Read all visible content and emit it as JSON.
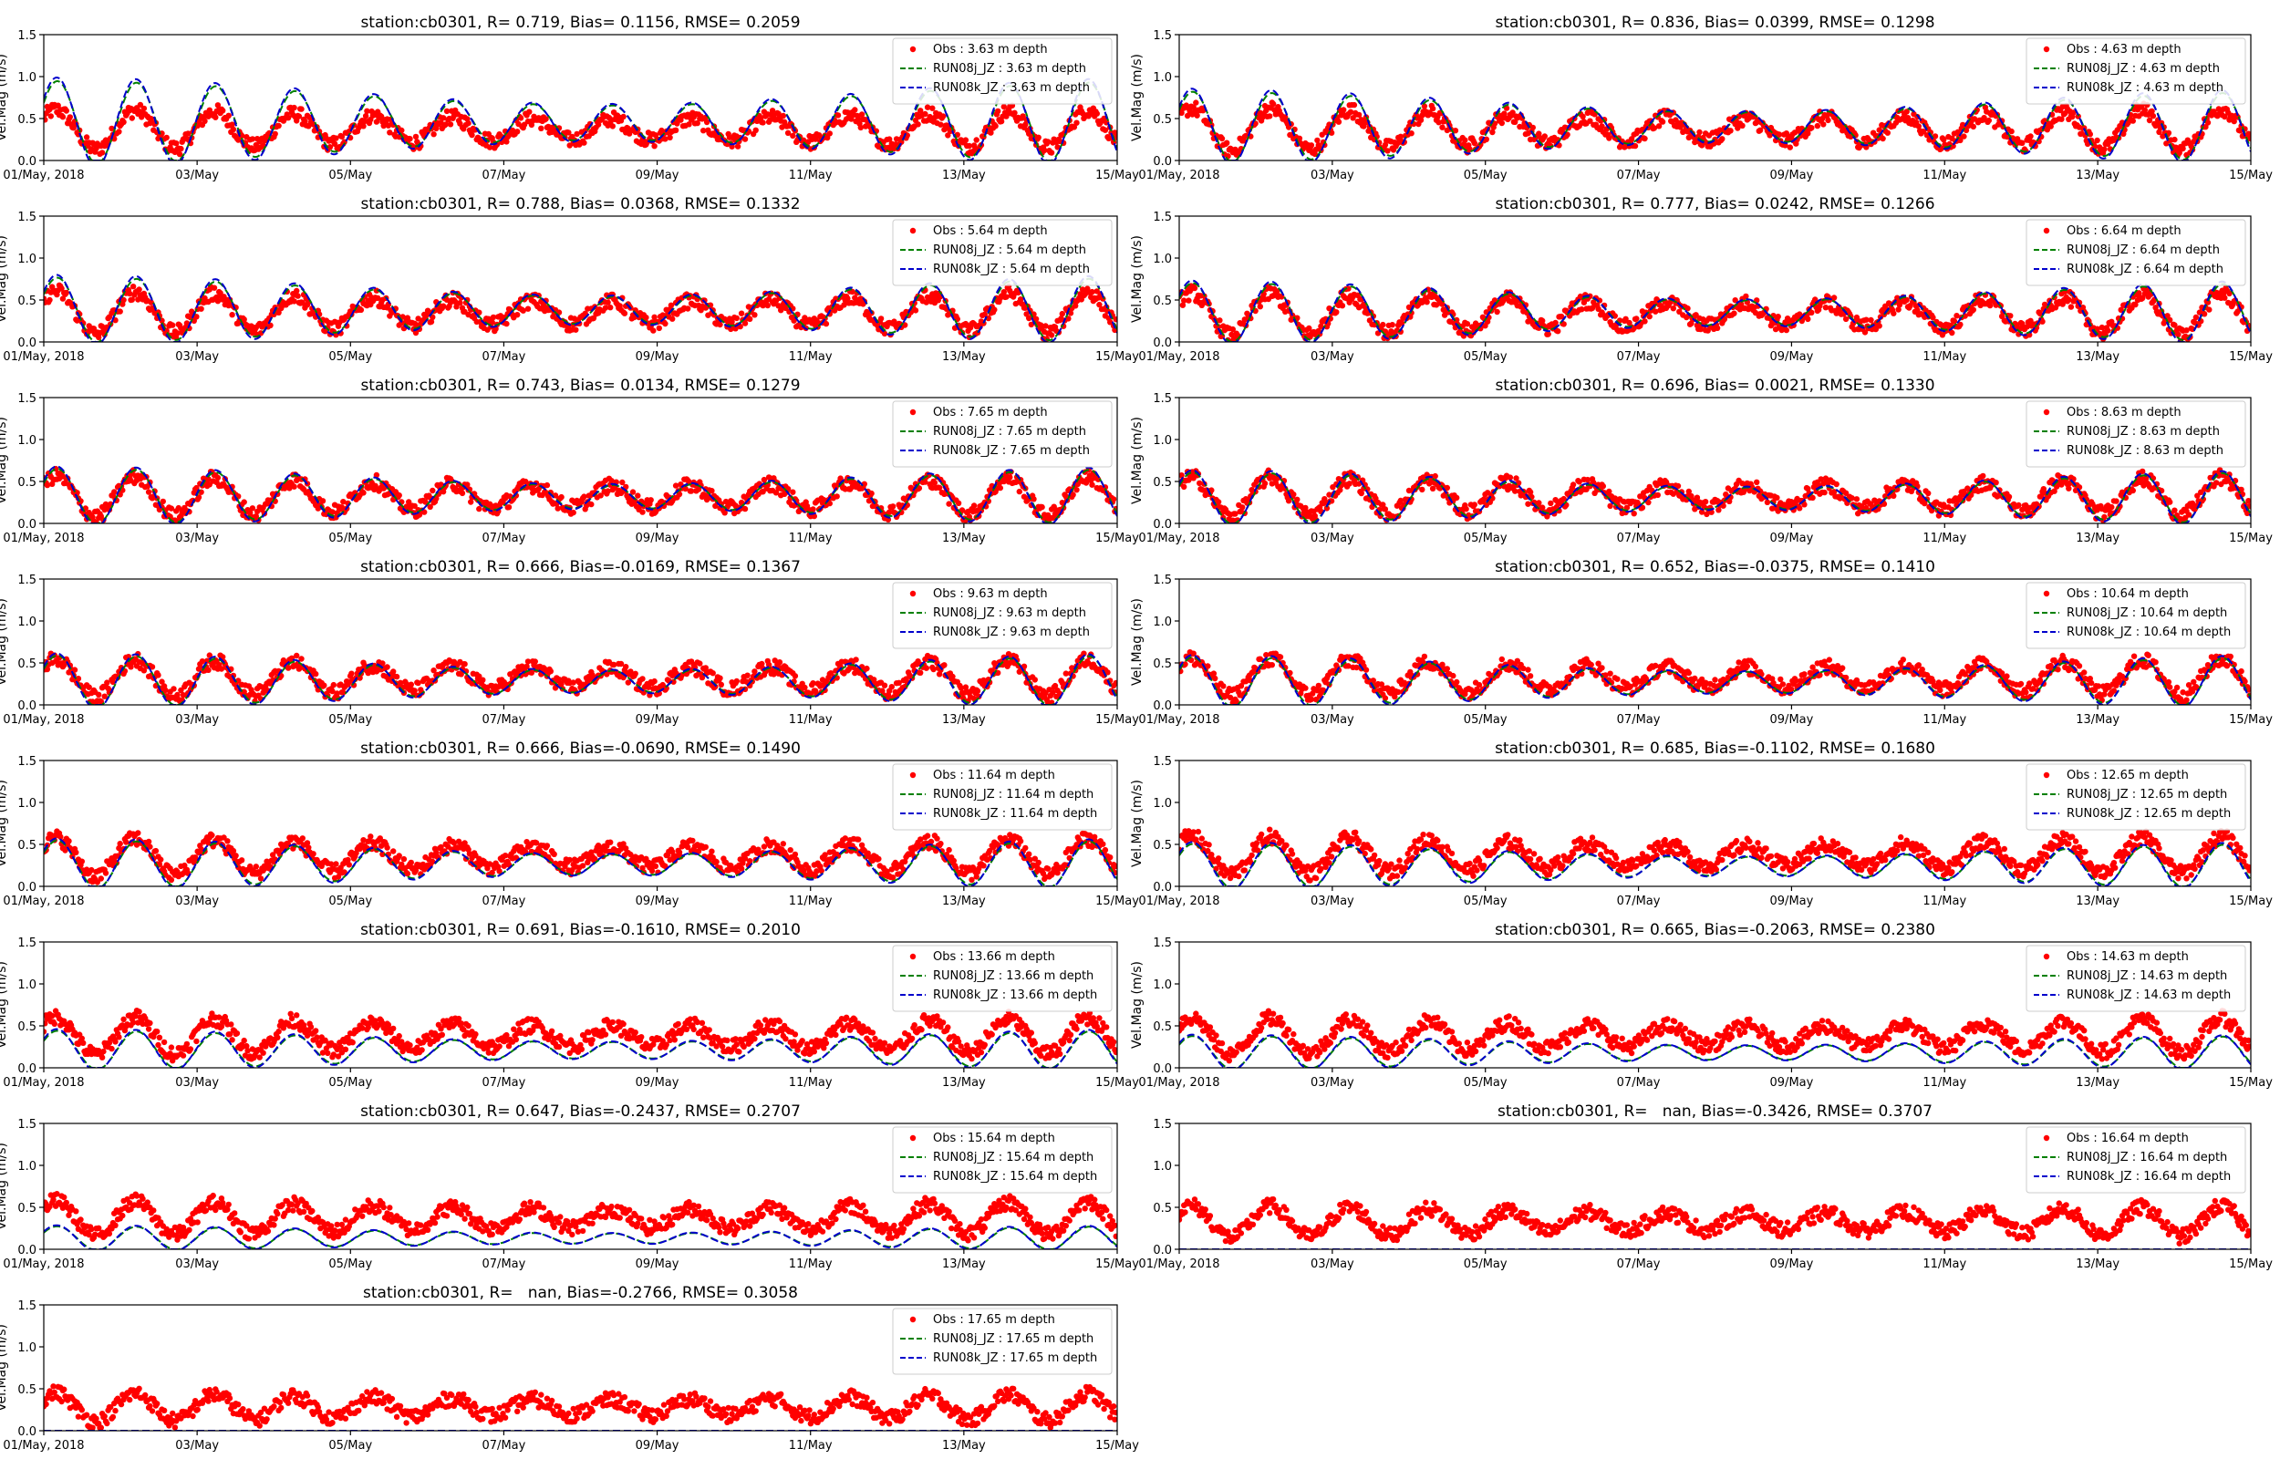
{
  "figure": {
    "xlabel_ticks": [
      "01/May, 2018",
      "03/May",
      "05/May",
      "07/May",
      "09/May",
      "11/May",
      "13/May",
      "15/May"
    ],
    "y_ticks": [
      "0.0",
      "0.5",
      "1.0",
      "1.5"
    ],
    "ylabel": "Vel.Mag (m/s)",
    "colors": {
      "obs": "#ff0000",
      "run08j": "#008000",
      "run08k": "#0000cc"
    }
  },
  "chart_data": [
    {
      "type": "line",
      "title": "station:cb0301, R= 0.719, Bias= 0.1156, RMSE= 0.2059",
      "ylabel": "Vel.Mag (m/s)",
      "ylim": [
        0,
        1.5
      ],
      "x_range_days": [
        0,
        14
      ],
      "legend": [
        "Obs : 3.63 m depth",
        "RUN08j_JZ : 3.63 m depth",
        "RUN08k_JZ : 3.63 m depth"
      ],
      "legend_position": "top-right",
      "obs": {
        "mean": 0.37,
        "amp": 0.25
      },
      "model": {
        "mean": 0.45,
        "amp": 0.45,
        "shown": true
      }
    },
    {
      "type": "line",
      "title": "station:cb0301, R= 0.836, Bias= 0.0399, RMSE= 0.1298",
      "ylabel": "Vel.Mag (m/s)",
      "ylim": [
        0,
        1.5
      ],
      "x_range_days": [
        0,
        14
      ],
      "legend": [
        "Obs : 4.63 m depth",
        "RUN08j_JZ : 4.63 m depth",
        "RUN08k_JZ : 4.63 m depth"
      ],
      "legend_position": "top-right",
      "obs": {
        "mean": 0.37,
        "amp": 0.27
      },
      "model": {
        "mean": 0.4,
        "amp": 0.38,
        "shown": true
      }
    },
    {
      "type": "line",
      "title": "station:cb0301, R= 0.788, Bias= 0.0368, RMSE= 0.1332",
      "ylabel": "Vel.Mag (m/s)",
      "ylim": [
        0,
        1.5
      ],
      "x_range_days": [
        0,
        14
      ],
      "legend": [
        "Obs : 5.64 m depth",
        "RUN08j_JZ : 5.64 m depth",
        "RUN08k_JZ : 5.64 m depth"
      ],
      "legend_position": "top-right",
      "obs": {
        "mean": 0.35,
        "amp": 0.27
      },
      "model": {
        "mean": 0.38,
        "amp": 0.35,
        "shown": true
      }
    },
    {
      "type": "line",
      "title": "station:cb0301, R= 0.777, Bias= 0.0242, RMSE= 0.1266",
      "ylabel": "Vel.Mag (m/s)",
      "ylim": [
        0,
        1.5
      ],
      "x_range_days": [
        0,
        14
      ],
      "legend": [
        "Obs : 6.64 m depth",
        "RUN08j_JZ : 6.64 m depth",
        "RUN08k_JZ : 6.64 m depth"
      ],
      "legend_position": "top-right",
      "obs": {
        "mean": 0.33,
        "amp": 0.27
      },
      "model": {
        "mean": 0.35,
        "amp": 0.32,
        "shown": true
      }
    },
    {
      "type": "line",
      "title": "station:cb0301, R= 0.743, Bias= 0.0134, RMSE= 0.1279",
      "ylabel": "Vel.Mag (m/s)",
      "ylim": [
        0,
        1.5
      ],
      "x_range_days": [
        0,
        14
      ],
      "legend": [
        "Obs : 7.65 m depth",
        "RUN08j_JZ : 7.65 m depth",
        "RUN08k_JZ : 7.65 m depth"
      ],
      "legend_position": "top-right",
      "obs": {
        "mean": 0.32,
        "amp": 0.26
      },
      "model": {
        "mean": 0.32,
        "amp": 0.3,
        "shown": true
      }
    },
    {
      "type": "line",
      "title": "station:cb0301, R= 0.696, Bias= 0.0021, RMSE= 0.1330",
      "ylabel": "Vel.Mag (m/s)",
      "ylim": [
        0,
        1.5
      ],
      "x_range_days": [
        0,
        14
      ],
      "legend": [
        "Obs : 8.63 m depth",
        "RUN08j_JZ : 8.63 m depth",
        "RUN08k_JZ : 8.63 m depth"
      ],
      "legend_position": "top-right",
      "obs": {
        "mean": 0.32,
        "amp": 0.25
      },
      "model": {
        "mean": 0.3,
        "amp": 0.28,
        "shown": true
      }
    },
    {
      "type": "line",
      "title": "station:cb0301, R= 0.666, Bias=-0.0169, RMSE= 0.1367",
      "ylabel": "Vel.Mag (m/s)",
      "ylim": [
        0,
        1.5
      ],
      "x_range_days": [
        0,
        14
      ],
      "legend": [
        "Obs : 9.63 m depth",
        "RUN08j_JZ : 9.63 m depth",
        "RUN08k_JZ : 9.63 m depth"
      ],
      "legend_position": "top-right",
      "obs": {
        "mean": 0.32,
        "amp": 0.24
      },
      "model": {
        "mean": 0.28,
        "amp": 0.28,
        "shown": true
      }
    },
    {
      "type": "line",
      "title": "station:cb0301, R= 0.652, Bias=-0.0375, RMSE= 0.1410",
      "ylabel": "Vel.Mag (m/s)",
      "ylim": [
        0,
        1.5
      ],
      "x_range_days": [
        0,
        14
      ],
      "legend": [
        "Obs : 10.64 m depth",
        "RUN08j_JZ : 10.64 m depth",
        "RUN08k_JZ : 10.64 m depth"
      ],
      "legend_position": "top-right",
      "obs": {
        "mean": 0.33,
        "amp": 0.24
      },
      "model": {
        "mean": 0.27,
        "amp": 0.27,
        "shown": true
      }
    },
    {
      "type": "line",
      "title": "station:cb0301, R= 0.666, Bias=-0.0690, RMSE= 0.1490",
      "ylabel": "Vel.Mag (m/s)",
      "ylim": [
        0,
        1.5
      ],
      "x_range_days": [
        0,
        14
      ],
      "legend": [
        "Obs : 11.64 m depth",
        "RUN08j_JZ : 11.64 m depth",
        "RUN08k_JZ : 11.64 m depth"
      ],
      "legend_position": "top-right",
      "obs": {
        "mean": 0.35,
        "amp": 0.24
      },
      "model": {
        "mean": 0.26,
        "amp": 0.26,
        "shown": true
      }
    },
    {
      "type": "line",
      "title": "station:cb0301, R= 0.685, Bias=-0.1102, RMSE= 0.1680",
      "ylabel": "Vel.Mag (m/s)",
      "ylim": [
        0,
        1.5
      ],
      "x_range_days": [
        0,
        14
      ],
      "legend": [
        "Obs : 12.65 m depth",
        "RUN08j_JZ : 12.65 m depth",
        "RUN08k_JZ : 12.65 m depth"
      ],
      "legend_position": "top-right",
      "obs": {
        "mean": 0.37,
        "amp": 0.24
      },
      "model": {
        "mean": 0.24,
        "amp": 0.24,
        "shown": true
      }
    },
    {
      "type": "line",
      "title": "station:cb0301, R= 0.691, Bias=-0.1610, RMSE= 0.2010",
      "ylabel": "Vel.Mag (m/s)",
      "ylim": [
        0,
        1.5
      ],
      "x_range_days": [
        0,
        14
      ],
      "legend": [
        "Obs : 13.66 m depth",
        "RUN08j_JZ : 13.66 m depth",
        "RUN08k_JZ : 13.66 m depth"
      ],
      "legend_position": "top-right",
      "obs": {
        "mean": 0.38,
        "amp": 0.24
      },
      "model": {
        "mean": 0.21,
        "amp": 0.21,
        "shown": true
      }
    },
    {
      "type": "line",
      "title": "station:cb0301, R= 0.665, Bias=-0.2063, RMSE= 0.2380",
      "ylabel": "Vel.Mag (m/s)",
      "ylim": [
        0,
        1.5
      ],
      "x_range_days": [
        0,
        14
      ],
      "legend": [
        "Obs : 14.63 m depth",
        "RUN08j_JZ : 14.63 m depth",
        "RUN08k_JZ : 14.63 m depth"
      ],
      "legend_position": "top-right",
      "obs": {
        "mean": 0.38,
        "amp": 0.23
      },
      "model": {
        "mean": 0.18,
        "amp": 0.18,
        "shown": true
      }
    },
    {
      "type": "line",
      "title": "station:cb0301, R= 0.647, Bias=-0.2437, RMSE= 0.2707",
      "ylabel": "Vel.Mag (m/s)",
      "ylim": [
        0,
        1.5
      ],
      "x_range_days": [
        0,
        14
      ],
      "legend": [
        "Obs : 15.64 m depth",
        "RUN08j_JZ : 15.64 m depth",
        "RUN08k_JZ : 15.64 m depth"
      ],
      "legend_position": "top-right",
      "obs": {
        "mean": 0.37,
        "amp": 0.22
      },
      "model": {
        "mean": 0.13,
        "amp": 0.13,
        "shown": true
      }
    },
    {
      "type": "line",
      "title": "station:cb0301, R=   nan, Bias=-0.3426, RMSE= 0.3707",
      "ylabel": "",
      "ylim": [
        0,
        1.5
      ],
      "x_range_days": [
        0,
        14
      ],
      "legend": [
        "Obs : 16.64 m depth",
        "RUN08j_JZ : 16.64 m depth",
        "RUN08k_JZ : 16.64 m depth"
      ],
      "legend_position": "top-right",
      "obs": {
        "mean": 0.33,
        "amp": 0.2
      },
      "model": {
        "mean": 0.0,
        "amp": 0.0,
        "shown": true
      }
    },
    {
      "type": "line",
      "title": "station:cb0301, R=   nan, Bias=-0.2766, RMSE= 0.3058",
      "ylabel": "Vel.Mag (m/s)",
      "ylim": [
        0,
        1.5
      ],
      "x_range_days": [
        0,
        14
      ],
      "legend": [
        "Obs : 17.65 m depth",
        "RUN08j_JZ : 17.65 m depth",
        "RUN08k_JZ : 17.65 m depth"
      ],
      "legend_position": "top-right",
      "obs": {
        "mean": 0.28,
        "amp": 0.18
      },
      "model": {
        "mean": 0.0,
        "amp": 0.0,
        "shown": true
      }
    }
  ]
}
